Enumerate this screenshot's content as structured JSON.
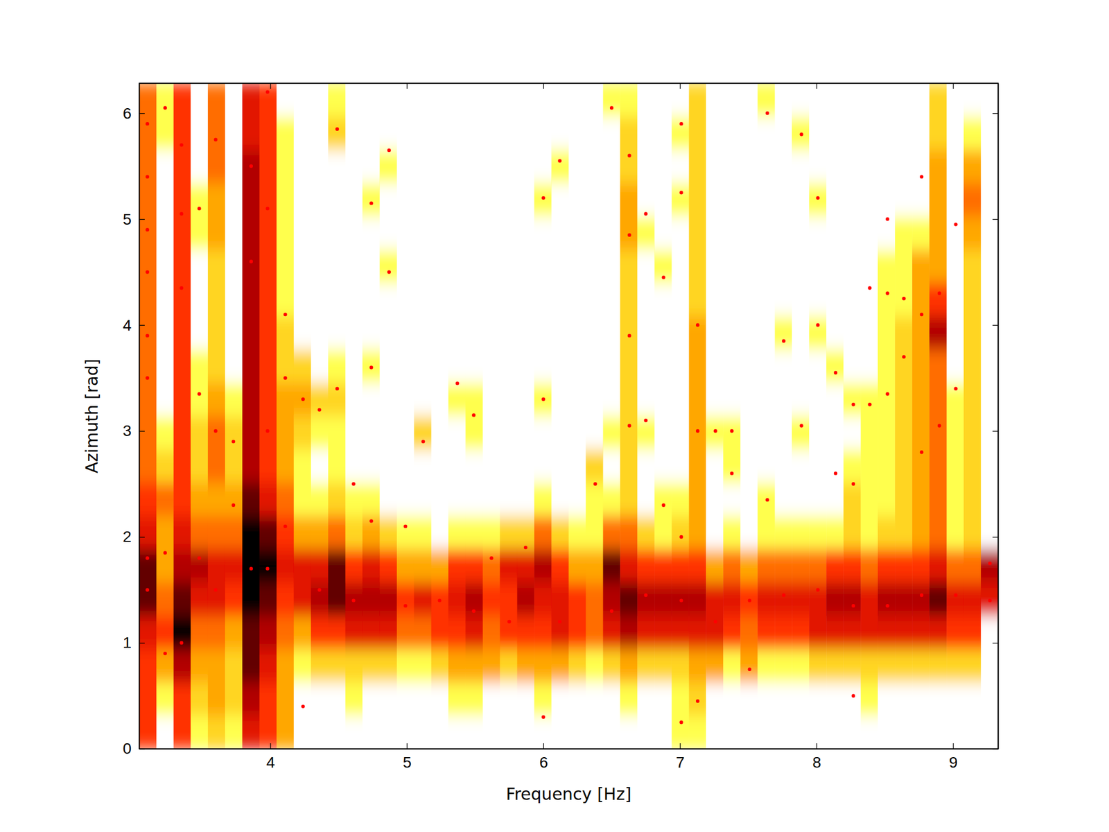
{
  "chart_data": {
    "type": "heatmap",
    "x_label": "Frequency [Hz]",
    "y_label": "Azimuth [rad]",
    "xlim": [
      3.04,
      9.33
    ],
    "xticks": [
      4,
      5,
      6,
      7,
      8,
      9
    ],
    "ylim": [
      0,
      6.283
    ],
    "yticks": [
      0,
      1,
      2,
      3,
      4,
      5,
      6
    ],
    "zlim": [
      0,
      9
    ],
    "x_edges": [
      3.04,
      3.166,
      3.292,
      3.417,
      3.543,
      3.669,
      3.795,
      3.921,
      4.046,
      4.172,
      4.298,
      4.424,
      4.55,
      4.675,
      4.801,
      4.927,
      5.053,
      5.179,
      5.304,
      5.43,
      5.556,
      5.682,
      5.808,
      5.933,
      6.059,
      6.185,
      6.311,
      6.437,
      6.562,
      6.688,
      6.814,
      6.94,
      7.066,
      7.191,
      7.317,
      7.443,
      7.569,
      7.695,
      7.82,
      7.946,
      8.072,
      8.198,
      8.324,
      8.449,
      8.575,
      8.701,
      8.827,
      8.953,
      9.078,
      9.204,
      9.33
    ],
    "y_edges": [
      0,
      0.314,
      0.628,
      0.942,
      1.257,
      1.571,
      1.885,
      2.199,
      2.513,
      2.827,
      3.142,
      3.456,
      3.77,
      4.084,
      4.398,
      4.712,
      5.027,
      5.341,
      5.655,
      5.969,
      6.283
    ],
    "cells": [
      [
        5,
        5,
        5,
        6,
        8,
        8,
        6,
        5,
        4,
        4,
        4,
        4,
        4,
        4,
        4,
        4,
        4,
        4,
        4,
        4
      ],
      [
        0,
        1,
        3,
        5,
        4,
        3,
        3,
        4,
        2,
        1,
        0,
        0,
        0,
        0,
        0,
        0,
        0,
        0,
        1,
        1
      ],
      [
        5,
        5,
        7,
        9,
        8,
        7,
        6,
        5,
        5,
        5,
        5,
        5,
        5,
        5,
        5,
        5,
        5,
        5,
        5,
        5
      ],
      [
        1,
        2,
        3,
        4,
        6,
        7,
        4,
        3,
        2,
        2,
        1,
        1,
        0,
        0,
        0,
        1,
        1,
        0,
        0,
        0
      ],
      [
        2,
        3,
        3,
        4,
        6,
        6,
        4,
        3,
        4,
        4,
        3,
        2,
        2,
        2,
        2,
        3,
        3,
        4,
        4,
        4
      ],
      [
        1,
        2,
        2,
        3,
        5,
        6,
        4,
        3,
        2,
        2,
        1,
        0,
        0,
        0,
        0,
        0,
        0,
        0,
        0,
        0
      ],
      [
        6,
        7,
        8,
        8,
        9,
        9,
        9,
        8,
        7,
        7,
        7,
        7,
        7,
        7,
        7,
        7,
        7,
        7,
        6,
        6
      ],
      [
        5,
        5,
        6,
        7,
        8,
        9,
        8,
        6,
        5,
        5,
        5,
        5,
        5,
        5,
        5,
        5,
        5,
        5,
        5,
        5
      ],
      [
        3,
        3,
        3,
        4,
        5,
        6,
        5,
        4,
        3,
        3,
        3,
        2,
        2,
        1,
        1,
        1,
        1,
        1,
        1,
        0
      ],
      [
        0,
        0,
        1,
        3,
        6,
        6,
        3,
        1,
        1,
        2,
        3,
        2,
        0,
        0,
        0,
        0,
        0,
        0,
        0,
        0
      ],
      [
        0,
        0,
        2,
        5,
        7,
        6,
        3,
        1,
        0,
        1,
        2,
        0,
        0,
        0,
        0,
        0,
        0,
        0,
        0,
        0
      ],
      [
        0,
        0,
        2,
        5,
        8,
        8,
        4,
        2,
        1,
        1,
        2,
        1,
        0,
        0,
        0,
        0,
        0,
        0,
        2,
        1
      ],
      [
        0,
        1,
        2,
        6,
        7,
        5,
        2,
        1,
        0,
        0,
        0,
        0,
        0,
        0,
        0,
        0,
        0,
        0,
        0,
        0
      ],
      [
        0,
        0,
        2,
        6,
        7,
        6,
        3,
        1,
        0,
        0,
        0,
        1,
        0,
        0,
        0,
        0,
        1,
        0,
        0,
        0
      ],
      [
        0,
        0,
        2,
        6,
        7,
        5,
        2,
        0,
        0,
        0,
        0,
        0,
        0,
        0,
        1,
        0,
        0,
        1,
        0,
        0
      ],
      [
        0,
        0,
        1,
        4,
        5,
        3,
        1,
        0,
        0,
        0,
        0,
        0,
        0,
        0,
        0,
        0,
        0,
        0,
        0,
        0
      ],
      [
        0,
        0,
        1,
        4,
        6,
        3,
        1,
        0,
        0,
        2,
        0,
        0,
        0,
        0,
        0,
        0,
        0,
        0,
        0,
        0
      ],
      [
        0,
        0,
        2,
        5,
        5,
        3,
        0,
        0,
        0,
        0,
        0,
        0,
        0,
        0,
        0,
        0,
        0,
        0,
        0,
        0
      ],
      [
        0,
        1,
        3,
        5,
        6,
        5,
        1,
        0,
        0,
        0,
        1,
        0,
        0,
        0,
        0,
        0,
        0,
        0,
        0,
        0
      ],
      [
        0,
        1,
        3,
        6,
        7,
        5,
        1,
        0,
        0,
        1,
        1,
        0,
        0,
        0,
        0,
        0,
        0,
        0,
        0,
        0
      ],
      [
        0,
        0,
        3,
        4,
        5,
        4,
        1,
        0,
        0,
        0,
        0,
        0,
        0,
        0,
        0,
        0,
        0,
        0,
        0,
        0
      ],
      [
        0,
        0,
        2,
        5,
        5,
        6,
        2,
        0,
        0,
        0,
        0,
        0,
        0,
        0,
        0,
        0,
        0,
        0,
        0,
        0
      ],
      [
        0,
        0,
        3,
        5,
        7,
        6,
        2,
        0,
        0,
        0,
        0,
        0,
        0,
        0,
        0,
        0,
        0,
        0,
        0,
        0
      ],
      [
        0,
        1,
        3,
        5,
        6,
        7,
        4,
        1,
        0,
        0,
        1,
        0,
        0,
        0,
        0,
        0,
        1,
        0,
        0,
        0
      ],
      [
        0,
        0,
        3,
        6,
        6,
        5,
        2,
        0,
        0,
        0,
        0,
        0,
        0,
        0,
        0,
        0,
        0,
        1,
        0,
        0
      ],
      [
        0,
        0,
        2,
        5,
        5,
        3,
        1,
        0,
        0,
        0,
        0,
        0,
        0,
        0,
        0,
        0,
        0,
        0,
        0,
        0
      ],
      [
        0,
        0,
        1,
        4,
        4,
        3,
        1,
        1,
        2,
        0,
        0,
        0,
        0,
        0,
        0,
        0,
        0,
        0,
        0,
        0
      ],
      [
        0,
        0,
        2,
        6,
        7,
        8,
        4,
        1,
        0,
        1,
        0,
        0,
        0,
        0,
        0,
        0,
        0,
        0,
        0,
        1
      ],
      [
        0,
        1,
        3,
        7,
        8,
        6,
        4,
        2,
        2,
        2,
        2,
        2,
        2,
        2,
        2,
        3,
        3,
        2,
        2,
        1
      ],
      [
        0,
        0,
        2,
        6,
        7,
        5,
        2,
        0,
        0,
        1,
        0,
        0,
        0,
        0,
        0,
        1,
        0,
        0,
        0,
        0
      ],
      [
        0,
        0,
        2,
        6,
        7,
        5,
        1,
        1,
        0,
        0,
        0,
        0,
        0,
        0,
        1,
        0,
        0,
        0,
        0,
        0
      ],
      [
        1,
        1,
        2,
        6,
        7,
        5,
        2,
        1,
        0,
        0,
        0,
        0,
        0,
        0,
        0,
        0,
        1,
        0,
        1,
        0
      ],
      [
        1,
        2,
        3,
        6,
        7,
        5,
        3,
        3,
        3,
        3,
        3,
        3,
        3,
        2,
        2,
        2,
        2,
        2,
        2,
        2
      ],
      [
        0,
        0,
        3,
        6,
        6,
        3,
        0,
        0,
        0,
        1,
        0,
        0,
        0,
        0,
        0,
        0,
        0,
        0,
        0,
        0
      ],
      [
        0,
        0,
        1,
        5,
        6,
        4,
        1,
        0,
        1,
        1,
        0,
        0,
        0,
        0,
        0,
        0,
        0,
        0,
        0,
        0
      ],
      [
        0,
        0,
        3,
        4,
        5,
        3,
        0,
        0,
        0,
        0,
        0,
        0,
        0,
        0,
        0,
        0,
        0,
        0,
        0,
        0
      ],
      [
        0,
        0,
        1,
        5,
        6,
        4,
        1,
        1,
        0,
        0,
        0,
        0,
        0,
        0,
        0,
        0,
        0,
        0,
        0,
        1
      ],
      [
        0,
        0,
        1,
        5,
        6,
        4,
        1,
        0,
        0,
        0,
        0,
        0,
        1,
        0,
        0,
        0,
        0,
        0,
        0,
        0
      ],
      [
        0,
        0,
        1,
        5,
        6,
        4,
        1,
        0,
        0,
        1,
        0,
        0,
        0,
        0,
        0,
        0,
        0,
        0,
        1,
        0
      ],
      [
        0,
        0,
        2,
        6,
        6,
        4,
        1,
        0,
        0,
        0,
        0,
        0,
        1,
        0,
        0,
        0,
        1,
        0,
        0,
        0
      ],
      [
        0,
        0,
        2,
        6,
        7,
        5,
        1,
        0,
        0,
        0,
        0,
        1,
        0,
        0,
        0,
        0,
        0,
        0,
        0,
        0
      ],
      [
        0,
        0,
        2,
        6,
        7,
        5,
        2,
        2,
        1,
        0,
        1,
        0,
        0,
        0,
        0,
        0,
        0,
        0,
        0,
        0
      ],
      [
        0,
        1,
        2,
        6,
        6,
        4,
        1,
        1,
        1,
        1,
        1,
        0,
        0,
        0,
        0,
        0,
        0,
        0,
        0,
        0
      ],
      [
        0,
        0,
        2,
        6,
        7,
        5,
        2,
        1,
        1,
        1,
        1,
        1,
        1,
        1,
        1,
        0,
        0,
        0,
        0,
        0
      ],
      [
        0,
        0,
        2,
        6,
        7,
        5,
        2,
        2,
        2,
        2,
        2,
        2,
        2,
        1,
        1,
        1,
        0,
        0,
        0,
        0
      ],
      [
        0,
        0,
        2,
        6,
        7,
        5,
        3,
        3,
        3,
        3,
        3,
        3,
        3,
        3,
        3,
        1,
        0,
        0,
        0,
        0
      ],
      [
        0,
        0,
        2,
        6,
        8,
        6,
        4,
        4,
        4,
        4,
        4,
        4,
        7,
        5,
        3,
        3,
        3,
        3,
        2,
        2
      ],
      [
        0,
        0,
        2,
        5,
        6,
        4,
        1,
        1,
        1,
        1,
        1,
        0,
        0,
        0,
        0,
        0,
        0,
        0,
        0,
        0
      ],
      [
        0,
        0,
        2,
        5,
        6,
        4,
        2,
        2,
        2,
        2,
        2,
        2,
        2,
        2,
        2,
        3,
        4,
        3,
        1,
        0
      ],
      [
        0,
        0,
        0,
        0,
        6,
        7,
        0,
        0,
        0,
        0,
        0,
        0,
        0,
        0,
        0,
        0,
        0,
        0,
        0,
        0
      ]
    ],
    "points": {
      "color": "#ff0000",
      "x": [
        3.1,
        3.1,
        3.1,
        3.1,
        3.1,
        3.1,
        3.1,
        3.1,
        3.23,
        3.23,
        3.23,
        3.35,
        3.35,
        3.35,
        3.35,
        3.48,
        3.48,
        3.48,
        3.6,
        3.6,
        3.6,
        3.73,
        3.73,
        3.86,
        3.86,
        3.86,
        3.98,
        3.98,
        3.98,
        3.98,
        4.11,
        4.11,
        4.11,
        4.24,
        4.24,
        4.36,
        4.49,
        4.49,
        4.61,
        4.74,
        4.74,
        4.74,
        4.87,
        4.87,
        4.99,
        5.12,
        5.37,
        5.49,
        5.62,
        5.87,
        6.0,
        6.0,
        6.0,
        6.12,
        6.38,
        6.5,
        6.63,
        6.63,
        6.63,
        6.63,
        6.75,
        6.75,
        6.88,
        6.88,
        7.01,
        7.01,
        7.01,
        7.01,
        7.13,
        7.13,
        7.13,
        7.26,
        7.38,
        7.38,
        7.51,
        7.64,
        7.64,
        7.76,
        7.89,
        7.89,
        8.01,
        8.01,
        8.14,
        8.14,
        8.27,
        8.27,
        8.27,
        8.39,
        8.39,
        8.52,
        8.52,
        8.52,
        8.64,
        8.64,
        8.77,
        8.77,
        8.77,
        8.9,
        8.9,
        9.02,
        9.02,
        4.36,
        4.61,
        4.99,
        5.24,
        5.49,
        5.75,
        6.12,
        6.5,
        6.75,
        7.01,
        7.26,
        7.51,
        7.76,
        8.01,
        8.27,
        8.52,
        8.77,
        9.02,
        9.27,
        9.27
      ],
      "y": [
        5.9,
        5.4,
        4.9,
        4.5,
        3.9,
        3.5,
        1.8,
        1.5,
        6.05,
        1.85,
        0.9,
        5.7,
        5.05,
        4.35,
        1.0,
        5.1,
        3.35,
        1.8,
        5.75,
        3.0,
        1.5,
        2.9,
        2.3,
        5.5,
        4.6,
        1.7,
        6.2,
        5.1,
        3.0,
        1.7,
        4.1,
        3.5,
        2.1,
        3.3,
        0.4,
        3.2,
        5.85,
        3.4,
        2.5,
        5.15,
        3.6,
        2.15,
        5.65,
        4.5,
        2.1,
        2.9,
        3.45,
        3.15,
        1.8,
        1.9,
        5.2,
        3.3,
        0.3,
        5.55,
        2.5,
        6.05,
        5.6,
        4.85,
        3.9,
        3.05,
        5.05,
        3.1,
        4.45,
        2.3,
        5.9,
        5.25,
        2.0,
        0.25,
        4.0,
        3.0,
        0.45,
        3.0,
        3.0,
        2.6,
        0.75,
        6.0,
        2.35,
        3.85,
        5.8,
        3.05,
        5.2,
        4.0,
        3.55,
        2.6,
        3.25,
        2.5,
        0.5,
        4.35,
        3.25,
        5.0,
        4.3,
        3.35,
        4.25,
        3.7,
        5.4,
        4.1,
        2.8,
        4.3,
        3.05,
        4.95,
        3.4,
        1.5,
        1.4,
        1.35,
        1.4,
        1.3,
        1.2,
        1.2,
        1.3,
        1.45,
        1.4,
        1.2,
        1.4,
        1.45,
        1.5,
        1.35,
        1.35,
        1.45,
        1.45,
        1.75,
        1.4
      ]
    }
  }
}
